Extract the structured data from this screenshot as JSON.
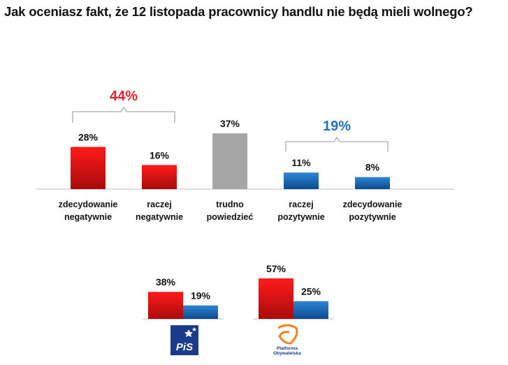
{
  "chart_data": [
    {
      "type": "bar",
      "title": "Jak oceniasz fakt, że 12 listopada pracownicy handlu nie będą mieli wolnego?",
      "unit": "%",
      "ylim": [
        0,
        100
      ],
      "categories": [
        [
          "zdecydowanie",
          "negatywnie"
        ],
        [
          "raczej",
          "negatywnie"
        ],
        [
          "trudno",
          "powiedzieć"
        ],
        [
          "raczej",
          "pozytywnie"
        ],
        [
          "zdecydowanie",
          "pozytywnie"
        ]
      ],
      "values": [
        28,
        16,
        37,
        11,
        8
      ],
      "value_labels": [
        "28%",
        "16%",
        "37%",
        "11%",
        "8%"
      ],
      "bar_colors": [
        "red",
        "red",
        "gray",
        "blue",
        "blue"
      ],
      "groups": [
        {
          "label": "44%",
          "color": "#e3202b",
          "bars": [
            0,
            1
          ]
        },
        {
          "label": "19%",
          "color": "#1f72b8",
          "bars": [
            3,
            4
          ]
        }
      ]
    },
    {
      "type": "bar",
      "categories": [
        "PiS",
        "Platforma Obywatelska"
      ],
      "series": [
        {
          "name": "negatywnie",
          "color": "red",
          "values": [
            38,
            57
          ],
          "labels": [
            "38%",
            "57%"
          ]
        },
        {
          "name": "pozytywnie",
          "color": "blue",
          "values": [
            19,
            25
          ],
          "labels": [
            "19%",
            "25%"
          ]
        }
      ],
      "logos": [
        {
          "icon": "pis-logo",
          "text": "PiS"
        },
        {
          "icon": "po-logo",
          "text": [
            "Platforma",
            "Obywatelska"
          ]
        }
      ]
    }
  ],
  "colors": {
    "red_top": "#ff1a1a",
    "red_bottom": "#a80c0c",
    "blue_top": "#2e86d6",
    "blue_bottom": "#0d4a8c",
    "gray": "#a6a6a6",
    "axis": "#bfbfbf",
    "bracket": "#aaaaaa",
    "pis_bg": "#1a3a8a",
    "po_orange": "#f58220"
  }
}
